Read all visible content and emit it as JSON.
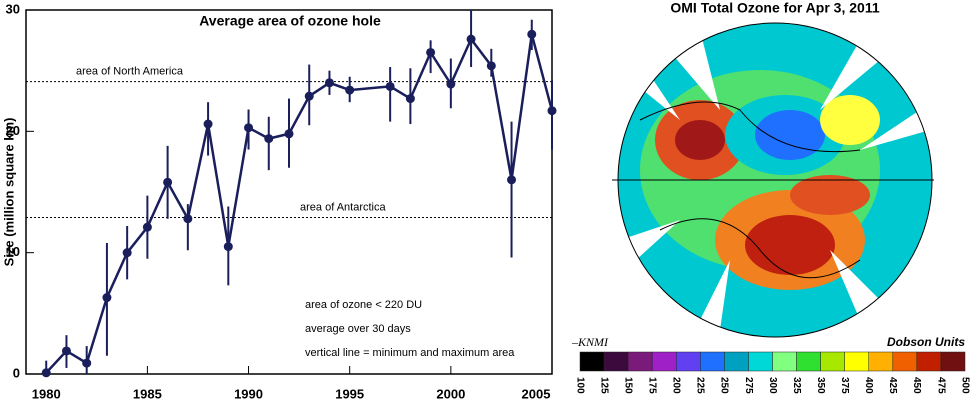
{
  "chart_data": {
    "type": "line",
    "title": "Average area of ozone hole",
    "y_label": "Size (million square km)",
    "x": [
      1980,
      1981,
      1982,
      1983,
      1984,
      1985,
      1986,
      1987,
      1988,
      1989,
      1990,
      1991,
      1992,
      1993,
      1994,
      1995,
      1997,
      1998,
      1999,
      2000,
      2001,
      2002,
      2003,
      2004,
      2005
    ],
    "series": [
      {
        "name": "Average area",
        "color": "#1a1f5c",
        "values": [
          0.1,
          1.9,
          0.9,
          6.3,
          10.0,
          12.1,
          15.8,
          12.8,
          20.6,
          10.5,
          20.3,
          19.4,
          19.8,
          22.9,
          24.0,
          23.4,
          23.7,
          22.7,
          26.5,
          23.9,
          27.6,
          25.4,
          16.0,
          28.0,
          21.7
        ],
        "low": [
          0,
          0.5,
          0,
          1.5,
          7.8,
          9.5,
          12.8,
          10.2,
          18.0,
          7.3,
          18.5,
          16.8,
          17.0,
          20.5,
          23.0,
          22.4,
          20.8,
          20.6,
          24.8,
          21.9,
          25.3,
          24.5,
          9.6,
          26.7,
          18.5
        ],
        "high": [
          1.1,
          3.2,
          2.3,
          10.8,
          12.2,
          14.7,
          18.8,
          14.0,
          22.4,
          13.8,
          21.8,
          21.2,
          22.7,
          25.5,
          25.0,
          24.5,
          25.3,
          25.2,
          27.5,
          26.0,
          30,
          26.8,
          20.8,
          29.2,
          24.2
        ]
      }
    ],
    "xlim": [
      1979,
      2005
    ],
    "ylim": [
      0,
      30
    ],
    "xticks": [
      1980,
      1985,
      1990,
      1995,
      2000,
      2005
    ],
    "yticks": [
      0,
      10,
      20,
      30
    ],
    "reference_lines": [
      {
        "label": "area of North America",
        "value": 24.1
      },
      {
        "label": "area of Antarctica",
        "value": 12.9
      }
    ],
    "annotations": [
      "area of ozone < 220 DU",
      "average over 30 days",
      "vertical line = minimum and maximum area"
    ]
  },
  "map": {
    "title": "OMI Total Ozone for Apr  3, 2011",
    "credit": "–KNMI",
    "units": "Dobson Units",
    "colorbar_ticks": [
      100,
      125,
      150,
      175,
      200,
      225,
      250,
      275,
      300,
      325,
      350,
      375,
      400,
      425,
      450,
      475,
      500
    ],
    "colorbar_colors": [
      "#000000",
      "#3c0a3c",
      "#7a1a7a",
      "#a020c8",
      "#6040f0",
      "#2070ff",
      "#00a0c0",
      "#00d8d8",
      "#80ff80",
      "#30e030",
      "#a8e800",
      "#ffff00",
      "#ffb000",
      "#f06000",
      "#c02000",
      "#701010"
    ]
  }
}
